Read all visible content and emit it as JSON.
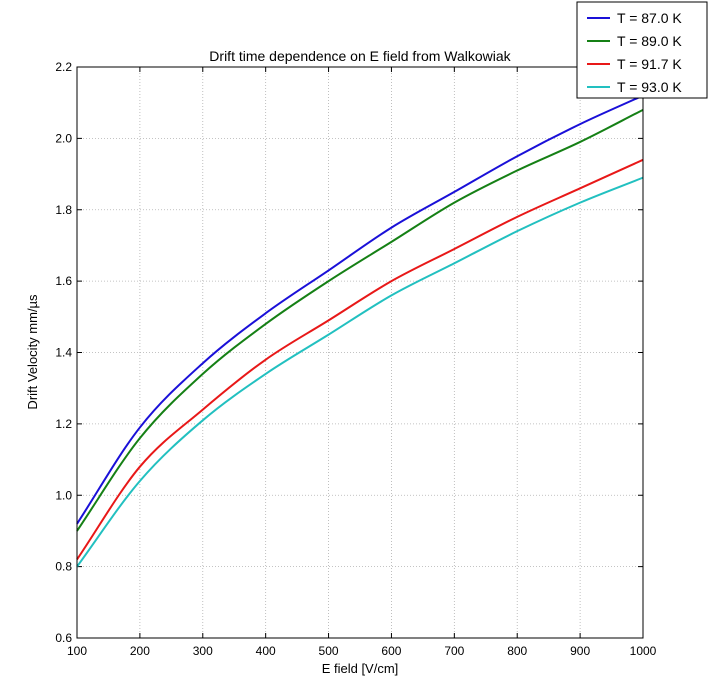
{
  "chart_data": {
    "type": "line",
    "title": "Drift time dependence on E field from Walkowiak",
    "xlabel": "E field [V/cm]",
    "ylabel": "Drift Velocity mm/µs",
    "xlim": [
      100,
      1000
    ],
    "ylim": [
      0.6,
      2.2
    ],
    "xticks": [
      "100",
      "200",
      "300",
      "400",
      "500",
      "600",
      "700",
      "800",
      "900",
      "1000"
    ],
    "yticks": [
      "0.6",
      "0.8",
      "1.0",
      "1.2",
      "1.4",
      "1.6",
      "1.8",
      "2.0",
      "2.2"
    ],
    "grid": true,
    "legend_position": "top-right",
    "x": [
      100,
      200,
      300,
      400,
      500,
      600,
      700,
      800,
      900,
      1000
    ],
    "series": [
      {
        "name": "T = 87.0 K",
        "color": "#1a10d8",
        "values": [
          0.92,
          1.19,
          1.37,
          1.51,
          1.63,
          1.75,
          1.85,
          1.95,
          2.04,
          2.12
        ]
      },
      {
        "name": "T = 89.0 K",
        "color": "#158015",
        "values": [
          0.9,
          1.16,
          1.34,
          1.48,
          1.6,
          1.71,
          1.82,
          1.91,
          1.99,
          2.08
        ]
      },
      {
        "name": "T = 91.7 K",
        "color": "#e81818",
        "values": [
          0.82,
          1.08,
          1.24,
          1.38,
          1.49,
          1.6,
          1.69,
          1.78,
          1.86,
          1.94
        ]
      },
      {
        "name": "T = 93.0 K",
        "color": "#22c0c0",
        "values": [
          0.8,
          1.04,
          1.21,
          1.34,
          1.45,
          1.56,
          1.65,
          1.74,
          1.82,
          1.89
        ]
      }
    ]
  }
}
